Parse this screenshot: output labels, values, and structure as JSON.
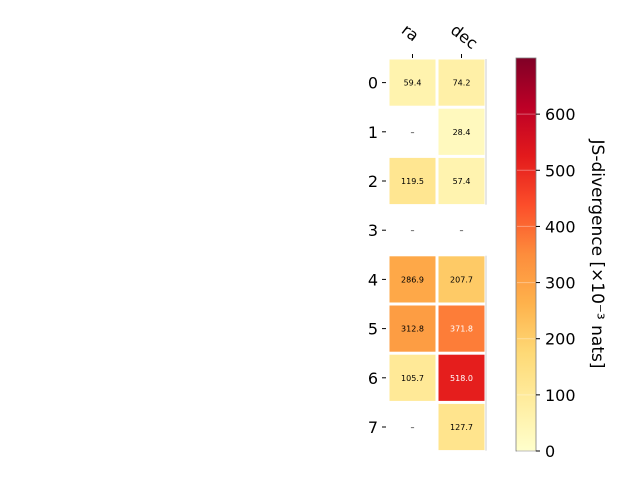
{
  "chart_data": {
    "type": "heatmap",
    "columns": [
      "ra",
      "dec"
    ],
    "rows": [
      "0",
      "1",
      "2",
      "3",
      "4",
      "5",
      "6",
      "7"
    ],
    "values": [
      [
        59.4,
        74.2
      ],
      [
        null,
        28.4
      ],
      [
        119.5,
        57.4
      ],
      [
        null,
        null
      ],
      [
        286.9,
        207.7
      ],
      [
        312.8,
        371.8
      ],
      [
        105.7,
        518.0
      ],
      [
        null,
        127.7
      ]
    ],
    "cell_labels": [
      [
        "59.4",
        "74.2"
      ],
      [
        "–",
        "28.4"
      ],
      [
        "119.5",
        "57.4"
      ],
      [
        "–",
        "–"
      ],
      [
        "286.9",
        "207.7"
      ],
      [
        "312.8",
        "371.8"
      ],
      [
        "105.7",
        "518.0"
      ],
      [
        "–",
        "127.7"
      ]
    ],
    "colorbar": {
      "label": "JS-divergence [×10⁻³ nats]",
      "range": [
        0,
        700
      ],
      "ticks": [
        0,
        100,
        200,
        300,
        400,
        500,
        600
      ],
      "colormap": "YlOrRd"
    }
  }
}
